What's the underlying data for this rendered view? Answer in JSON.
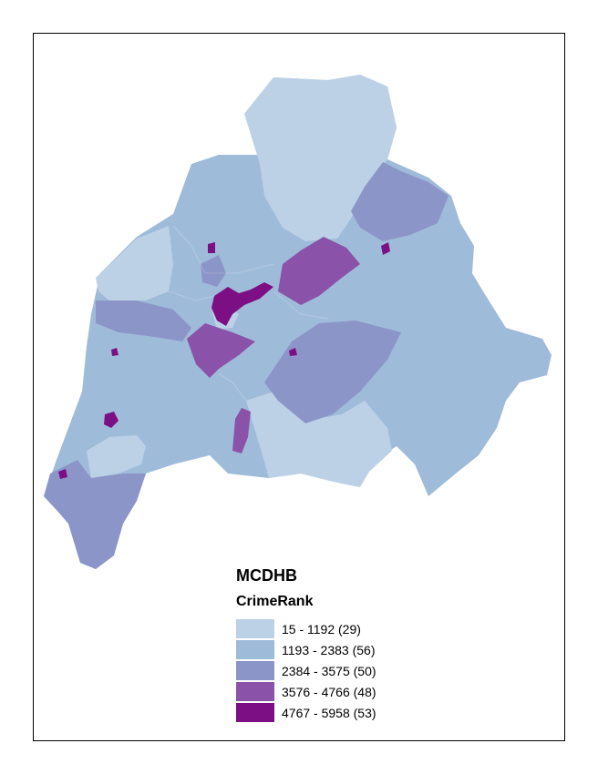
{
  "legend": {
    "title": "MCDHB",
    "field": "CrimeRank",
    "classes": [
      {
        "label": "15 - 1192 (29)",
        "color": "#bcd1e6"
      },
      {
        "label": "1193 - 2383 (56)",
        "color": "#9fbbda"
      },
      {
        "label": "2384 - 3575 (50)",
        "color": "#8c95c7"
      },
      {
        "label": "3576 - 4766 (48)",
        "color": "#8a52a8"
      },
      {
        "label": "4767 - 5958 (53)",
        "color": "#7d0f85"
      }
    ]
  }
}
